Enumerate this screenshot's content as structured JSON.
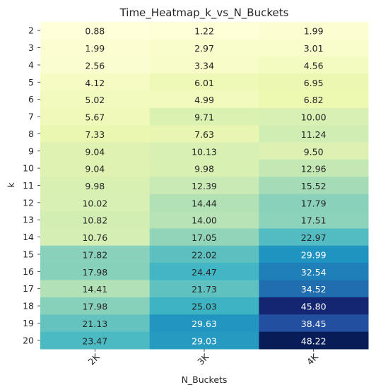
{
  "chart_data": {
    "type": "heatmap",
    "title": "Time_Heatmap_k_vs_N_Buckets",
    "xlabel": "N_Buckets",
    "ylabel": "k",
    "x_categories": [
      "2K",
      "3K",
      "4K"
    ],
    "y_categories": [
      "2",
      "3",
      "4",
      "5",
      "6",
      "7",
      "8",
      "9",
      "10",
      "11",
      "12",
      "13",
      "14",
      "15",
      "16",
      "17",
      "18",
      "19",
      "20"
    ],
    "values": [
      [
        0.88,
        1.22,
        1.99
      ],
      [
        1.99,
        2.97,
        3.01
      ],
      [
        2.56,
        3.34,
        4.56
      ],
      [
        4.12,
        6.01,
        6.95
      ],
      [
        5.02,
        4.99,
        6.82
      ],
      [
        5.67,
        9.71,
        10.0
      ],
      [
        7.33,
        7.63,
        11.24
      ],
      [
        9.04,
        10.13,
        9.5
      ],
      [
        9.04,
        9.98,
        12.96
      ],
      [
        9.98,
        12.39,
        15.52
      ],
      [
        10.02,
        14.44,
        17.79
      ],
      [
        10.82,
        14.0,
        17.51
      ],
      [
        10.76,
        17.05,
        22.97
      ],
      [
        17.82,
        22.02,
        29.99
      ],
      [
        17.98,
        24.47,
        32.54
      ],
      [
        14.41,
        21.73,
        34.52
      ],
      [
        17.98,
        25.03,
        45.8
      ],
      [
        21.13,
        29.63,
        38.45
      ],
      [
        23.47,
        29.03,
        48.22
      ]
    ],
    "value_labels": [
      [
        "0.88",
        "1.22",
        "1.99"
      ],
      [
        "1.99",
        "2.97",
        "3.01"
      ],
      [
        "2.56",
        "3.34",
        "4.56"
      ],
      [
        "4.12",
        "6.01",
        "6.95"
      ],
      [
        "5.02",
        "4.99",
        "6.82"
      ],
      [
        "5.67",
        "9.71",
        "10.00"
      ],
      [
        "7.33",
        "7.63",
        "11.24"
      ],
      [
        "9.04",
        "10.13",
        "9.50"
      ],
      [
        "9.04",
        "9.98",
        "12.96"
      ],
      [
        "9.98",
        "12.39",
        "15.52"
      ],
      [
        "10.02",
        "14.44",
        "17.79"
      ],
      [
        "10.82",
        "14.00",
        "17.51"
      ],
      [
        "10.76",
        "17.05",
        "22.97"
      ],
      [
        "17.82",
        "22.02",
        "29.99"
      ],
      [
        "17.98",
        "24.47",
        "32.54"
      ],
      [
        "14.41",
        "21.73",
        "34.52"
      ],
      [
        "17.98",
        "25.03",
        "45.80"
      ],
      [
        "21.13",
        "29.63",
        "38.45"
      ],
      [
        "23.47",
        "29.03",
        "48.22"
      ]
    ],
    "colormap": "YlGnBu",
    "colorbar": false,
    "annotated": true
  }
}
